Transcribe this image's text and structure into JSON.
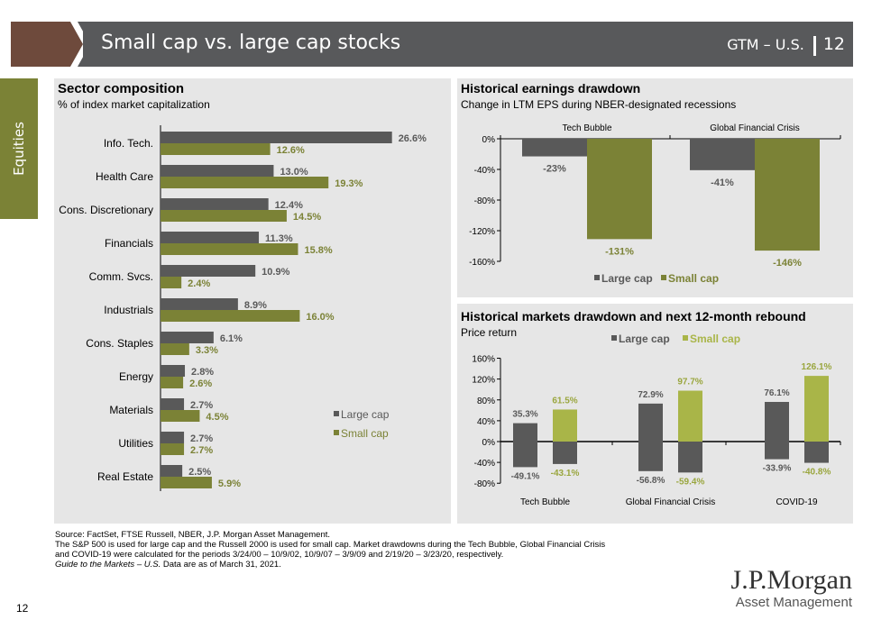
{
  "header": {
    "title": "Small cap vs. large cap stocks",
    "right_label": "GTM – U.S.",
    "page": "12"
  },
  "side_tab": {
    "label": "Equities"
  },
  "colors": {
    "large_cap": "#595959",
    "small_cap_sector": "#7b8236",
    "small_cap_earnings": "#7b8236",
    "small_cap_markets": "#a9b548",
    "header": "#58595b",
    "arrow": "#6e4a3c",
    "panel": "#e6e6e6"
  },
  "chart_data": [
    {
      "id": "sector",
      "type": "bar",
      "orientation": "horizontal",
      "title": "Sector composition",
      "subtitle": "% of index market capitalization",
      "categories": [
        "Info. Tech.",
        "Health Care",
        "Cons. Discretionary",
        "Financials",
        "Comm. Svcs.",
        "Industrials",
        "Cons. Staples",
        "Energy",
        "Materials",
        "Utilities",
        "Real Estate"
      ],
      "series": [
        {
          "name": "Large cap",
          "values": [
            26.6,
            13.0,
            12.4,
            11.3,
            10.9,
            8.9,
            6.1,
            2.8,
            2.7,
            2.7,
            2.5
          ],
          "labels": [
            "26.6%",
            "13.0%",
            "12.4%",
            "11.3%",
            "10.9%",
            "8.9%",
            "6.1%",
            "2.8%",
            "2.7%",
            "2.7%",
            "2.5%"
          ]
        },
        {
          "name": "Small cap",
          "values": [
            12.6,
            19.3,
            14.5,
            15.8,
            2.4,
            16.0,
            3.3,
            2.6,
            4.5,
            2.7,
            5.9
          ],
          "labels": [
            "12.6%",
            "19.3%",
            "14.5%",
            "15.8%",
            "2.4%",
            "16.0%",
            "3.3%",
            "2.6%",
            "4.5%",
            "2.7%",
            "5.9%"
          ]
        }
      ],
      "legend_position": "bottom-right"
    },
    {
      "id": "earnings",
      "type": "bar",
      "title": "Historical earnings drawdown",
      "subtitle": "Change in LTM EPS during NBER-designated recessions",
      "categories": [
        "Tech Bubble",
        "Global Financial Crisis"
      ],
      "series": [
        {
          "name": "Large cap",
          "values": [
            -23,
            -41
          ],
          "labels": [
            "-23%",
            "-41%"
          ]
        },
        {
          "name": "Small cap",
          "values": [
            -131,
            -146
          ],
          "labels": [
            "-131%",
            "-146%"
          ]
        }
      ],
      "ylim": [
        -160,
        0
      ],
      "yticks": [
        "0%",
        "-40%",
        "-80%",
        "-120%",
        "-160%"
      ],
      "legend_position": "bottom"
    },
    {
      "id": "markets",
      "type": "bar",
      "title": "Historical markets drawdown and next 12-month rebound",
      "subtitle": "Price return",
      "categories": [
        "Tech Bubble",
        "Global Financial Crisis",
        "COVID-19"
      ],
      "series": [
        {
          "name": "Large cap",
          "drawdown": [
            -49.1,
            -56.8,
            -33.9
          ],
          "rebound": [
            35.3,
            72.9,
            76.1
          ],
          "drawdown_labels": [
            "-49.1%",
            "-56.8%",
            "-33.9%"
          ],
          "rebound_labels": [
            "35.3%",
            "72.9%",
            "76.1%"
          ]
        },
        {
          "name": "Small cap",
          "drawdown": [
            -43.1,
            -59.4,
            -40.8
          ],
          "rebound": [
            61.5,
            97.7,
            126.1
          ],
          "drawdown_labels": [
            "-43.1%",
            "-59.4%",
            "-40.8%"
          ],
          "rebound_labels": [
            "61.5%",
            "97.7%",
            "126.1%"
          ]
        }
      ],
      "ylim": [
        -80,
        160
      ],
      "yticks": [
        "160%",
        "120%",
        "80%",
        "40%",
        "0%",
        "-40%",
        "-80%"
      ],
      "legend_position": "top"
    }
  ],
  "footnote": {
    "line1": "Source: FactSet, FTSE Russell, NBER, J.P. Morgan Asset Management.",
    "line2": "The S&P 500 is used for large cap and the Russell 2000 is used for small cap. Market drawdowns during the Tech Bubble, Global Financial Crisis",
    "line3": "and COVID-19 were calculated for the periods 3/24/00 – 10/9/02, 10/9/07 – 3/9/09 and 2/19/20 – 3/23/20, respectively.",
    "line4a": "Guide to the Markets – U.S.",
    "line4b": " Data are as of March 31, 2021."
  },
  "footer": {
    "page_number": "12",
    "logo_line1": "J.P.Morgan",
    "logo_line2": "Asset Management"
  }
}
